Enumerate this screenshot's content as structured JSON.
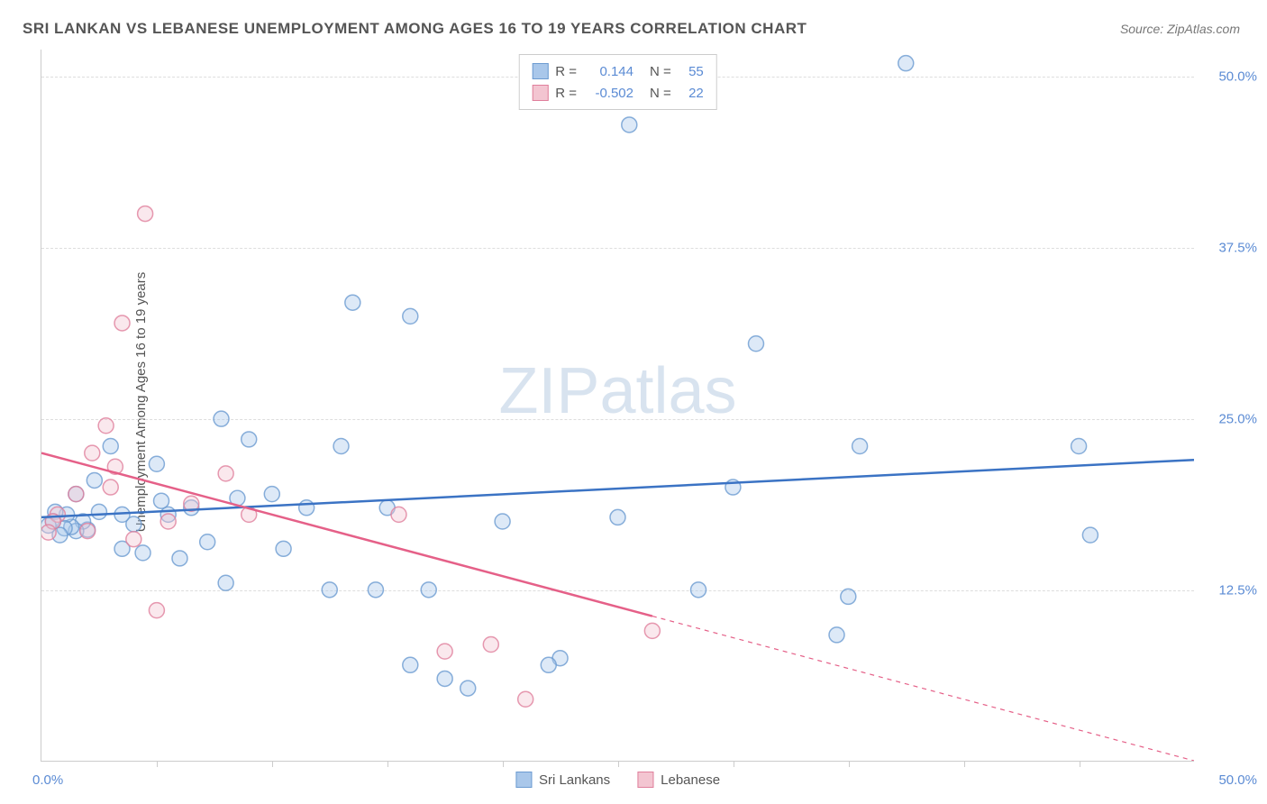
{
  "title": "SRI LANKAN VS LEBANESE UNEMPLOYMENT AMONG AGES 16 TO 19 YEARS CORRELATION CHART",
  "source": "Source: ZipAtlas.com",
  "y_axis_label": "Unemployment Among Ages 16 to 19 years",
  "watermark_a": "ZIP",
  "watermark_b": "atlas",
  "chart": {
    "type": "scatter",
    "xlim": [
      0,
      50
    ],
    "ylim": [
      0,
      52
    ],
    "x_label_min": "0.0%",
    "x_label_max": "50.0%",
    "y_ticks": [
      {
        "v": 12.5,
        "label": "12.5%"
      },
      {
        "v": 25.0,
        "label": "25.0%"
      },
      {
        "v": 37.5,
        "label": "37.5%"
      },
      {
        "v": 50.0,
        "label": "50.0%"
      }
    ],
    "x_tick_positions": [
      5,
      10,
      15,
      20,
      25,
      30,
      35,
      40,
      45
    ],
    "background_color": "#ffffff",
    "grid_color": "#dddddd",
    "series": [
      {
        "name": "Sri Lankans",
        "fill": "#a9c7ea",
        "stroke": "#6c9bd1",
        "marker_radius": 8.5,
        "R": "0.144",
        "N": "55",
        "regression": {
          "x1": 0,
          "y1": 17.8,
          "x2": 50,
          "y2": 22.0,
          "color": "#3b73c4",
          "width": 2.5,
          "dash_from_x": null
        },
        "points": [
          [
            0.3,
            17.2
          ],
          [
            0.5,
            17.5
          ],
          [
            0.6,
            18.2
          ],
          [
            0.8,
            16.5
          ],
          [
            1.0,
            17.0
          ],
          [
            1.1,
            18.0
          ],
          [
            1.3,
            17.1
          ],
          [
            1.5,
            19.5
          ],
          [
            1.5,
            16.8
          ],
          [
            1.8,
            17.5
          ],
          [
            2.0,
            16.9
          ],
          [
            2.3,
            20.5
          ],
          [
            2.5,
            18.2
          ],
          [
            3.0,
            23.0
          ],
          [
            3.5,
            18.0
          ],
          [
            3.5,
            15.5
          ],
          [
            4.0,
            17.3
          ],
          [
            4.4,
            15.2
          ],
          [
            5.0,
            21.7
          ],
          [
            5.2,
            19.0
          ],
          [
            5.5,
            18.0
          ],
          [
            6.0,
            14.8
          ],
          [
            6.5,
            18.5
          ],
          [
            7.2,
            16.0
          ],
          [
            7.8,
            25.0
          ],
          [
            8.0,
            13.0
          ],
          [
            8.5,
            19.2
          ],
          [
            9.0,
            23.5
          ],
          [
            10.0,
            19.5
          ],
          [
            10.5,
            15.5
          ],
          [
            11.5,
            18.5
          ],
          [
            12.5,
            12.5
          ],
          [
            13.0,
            23.0
          ],
          [
            13.5,
            33.5
          ],
          [
            14.5,
            12.5
          ],
          [
            15.0,
            18.5
          ],
          [
            16.0,
            7.0
          ],
          [
            16.0,
            32.5
          ],
          [
            16.8,
            12.5
          ],
          [
            17.5,
            6.0
          ],
          [
            18.5,
            5.3
          ],
          [
            20.0,
            17.5
          ],
          [
            22.0,
            7.0
          ],
          [
            22.5,
            7.5
          ],
          [
            25.0,
            17.8
          ],
          [
            25.5,
            46.5
          ],
          [
            28.5,
            12.5
          ],
          [
            30.0,
            20.0
          ],
          [
            31.0,
            30.5
          ],
          [
            34.5,
            9.2
          ],
          [
            35.0,
            12.0
          ],
          [
            35.5,
            23.0
          ],
          [
            37.5,
            51.0
          ],
          [
            45.0,
            23.0
          ],
          [
            45.5,
            16.5
          ]
        ]
      },
      {
        "name": "Lebanese",
        "fill": "#f3c5d1",
        "stroke": "#e07f9c",
        "marker_radius": 8.5,
        "R": "-0.502",
        "N": "22",
        "regression": {
          "x1": 0,
          "y1": 22.5,
          "x2": 50,
          "y2": 0.0,
          "color": "#e56088",
          "width": 2.5,
          "dash_from_x": 26.5
        },
        "points": [
          [
            0.3,
            16.7
          ],
          [
            0.5,
            17.5
          ],
          [
            0.7,
            18.0
          ],
          [
            1.5,
            19.5
          ],
          [
            2.0,
            16.8
          ],
          [
            2.2,
            22.5
          ],
          [
            2.8,
            24.5
          ],
          [
            3.0,
            20.0
          ],
          [
            3.2,
            21.5
          ],
          [
            3.5,
            32.0
          ],
          [
            4.0,
            16.2
          ],
          [
            4.5,
            40.0
          ],
          [
            5.0,
            11.0
          ],
          [
            5.5,
            17.5
          ],
          [
            6.5,
            18.8
          ],
          [
            8.0,
            21.0
          ],
          [
            9.0,
            18.0
          ],
          [
            15.5,
            18.0
          ],
          [
            17.5,
            8.0
          ],
          [
            19.5,
            8.5
          ],
          [
            21.0,
            4.5
          ],
          [
            26.5,
            9.5
          ]
        ]
      }
    ],
    "legend_top": {
      "r_label": "R =",
      "n_label": "N ="
    },
    "legend_bottom": [
      {
        "label": "Sri Lankans",
        "fill": "#a9c7ea",
        "stroke": "#6c9bd1"
      },
      {
        "label": "Lebanese",
        "fill": "#f3c5d1",
        "stroke": "#e07f9c"
      }
    ]
  }
}
